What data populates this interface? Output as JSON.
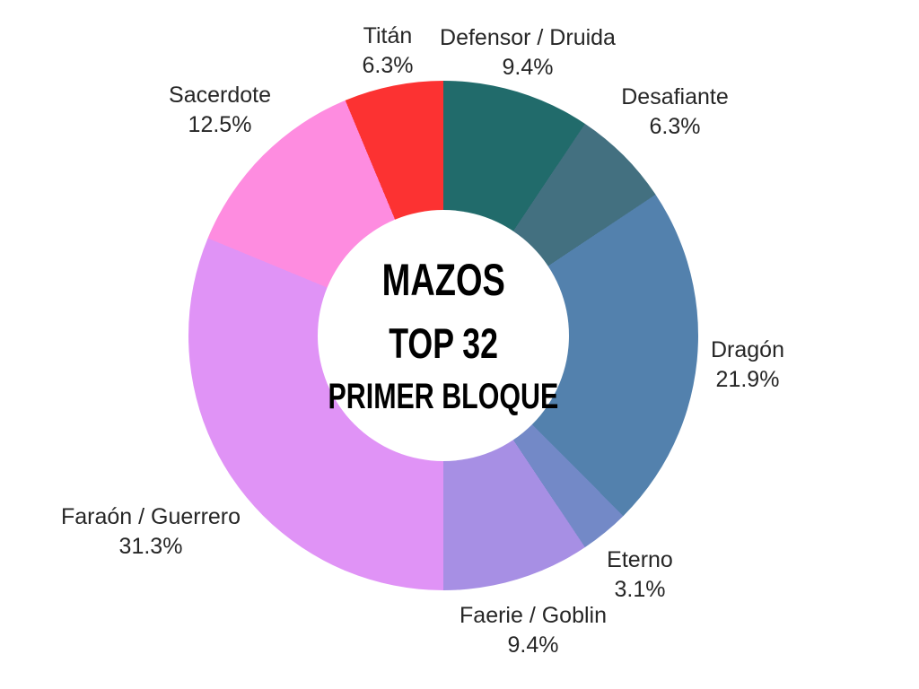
{
  "chart_data": {
    "type": "pie",
    "style": "donut",
    "title": "MAZOS TOP 32 PRIMER BLOQUE",
    "center_text": {
      "line1": "MAZOS",
      "line2": "TOP 32",
      "line3": "PRIMER BLOQUE"
    },
    "legend_position": "labels-outside",
    "start_angle_deg": 0,
    "direction": "clockwise",
    "background_color": "#ffffff",
    "label_text_color": "#262626",
    "slices": [
      {
        "label": "Defensor / Druida",
        "pct_label": "9.4%",
        "value": 9.4,
        "color": "#216b6b"
      },
      {
        "label": "Desafiante",
        "pct_label": "6.3%",
        "value": 6.3,
        "color": "#437080"
      },
      {
        "label": "Dragón",
        "pct_label": "21.9%",
        "value": 21.9,
        "color": "#5381ad"
      },
      {
        "label": "Eterno",
        "pct_label": "3.1%",
        "value": 3.1,
        "color": "#7389c7"
      },
      {
        "label": "Faerie / Goblin",
        "pct_label": "9.4%",
        "value": 9.4,
        "color": "#a78fe4"
      },
      {
        "label": "Faraón / Guerrero",
        "pct_label": "31.3%",
        "value": 31.3,
        "color": "#e093f6"
      },
      {
        "label": "Sacerdote",
        "pct_label": "12.5%",
        "value": 12.5,
        "color": "#fe8ce0"
      },
      {
        "label": "Titán",
        "pct_label": "6.3%",
        "value": 6.3,
        "color": "#fc3232"
      }
    ]
  }
}
